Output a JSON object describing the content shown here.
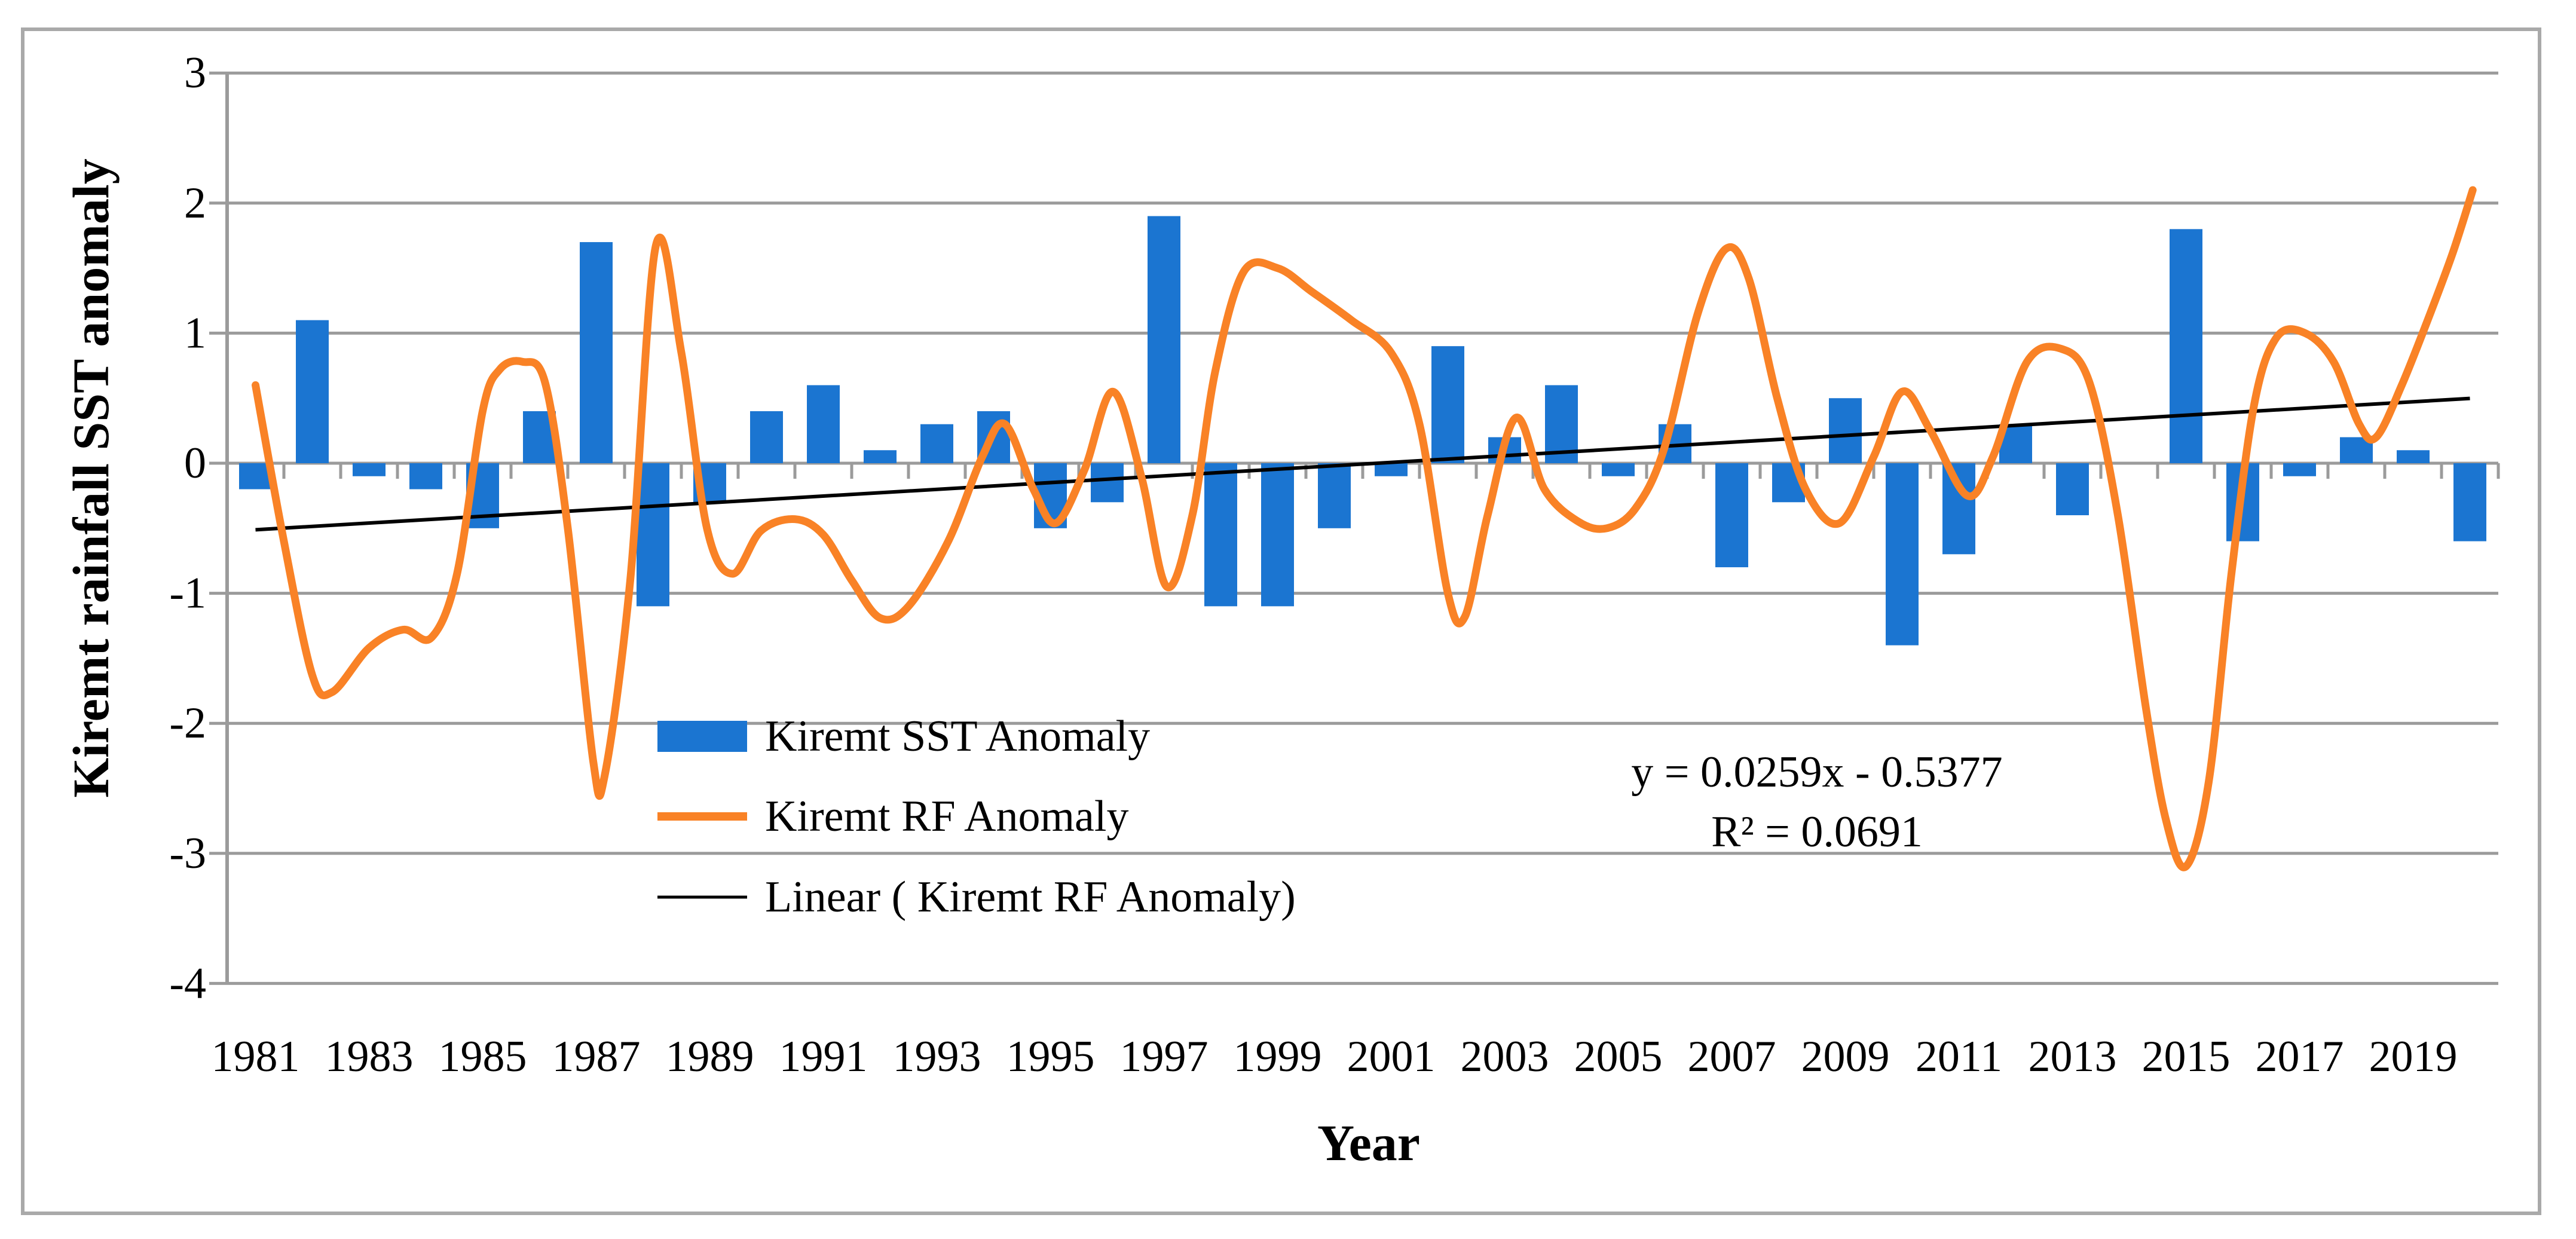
{
  "figure": {
    "background": "#FFFFFF",
    "border_color": "#A9A9A9"
  },
  "axes": {
    "grid_color": "#9B9B9B",
    "axis_color": "#9B9B9B",
    "y_tick_labels": [
      "3",
      "2",
      "1",
      "0",
      "-1",
      "-2",
      "-3",
      "-4"
    ],
    "x_tick_labels": [
      "1981",
      "1983",
      "1985",
      "1987",
      "1989",
      "1991",
      "1993",
      "1995",
      "1997",
      "1999",
      "2001",
      "2003",
      "2005",
      "2007",
      "2009",
      "2011",
      "2013",
      "2015",
      "2017",
      "2019"
    ]
  },
  "legend": {
    "items": [
      {
        "label": "Kiremt SST Anomaly",
        "swatch": "bar",
        "color": "#1B75D1"
      },
      {
        "label": " Kiremt RF Anomaly",
        "swatch": "thick-line",
        "color": "#F98226"
      },
      {
        "label": "Linear ( Kiremt RF Anomaly)",
        "swatch": "thin-line",
        "color": "#000000"
      }
    ]
  },
  "annotation": {
    "line1": "y = 0.0259x - 0.5377",
    "line2": "R² = 0.0691"
  },
  "chart_data": {
    "type": "combo",
    "title": "",
    "xlabel": "Year",
    "ylabel": "Kiremt rainfall SST anomaly",
    "ylim": [
      -4,
      3
    ],
    "y_tick_step": 1,
    "grid": true,
    "legend_position": "inside-lower-left",
    "categories": [
      1981,
      1982,
      1983,
      1984,
      1985,
      1986,
      1987,
      1988,
      1989,
      1990,
      1991,
      1992,
      1993,
      1994,
      1995,
      1996,
      1997,
      1998,
      1999,
      2000,
      2001,
      2002,
      2003,
      2004,
      2005,
      2006,
      2007,
      2008,
      2009,
      2010,
      2011,
      2012,
      2013,
      2014,
      2015,
      2016,
      2017,
      2018,
      2019,
      2020
    ],
    "series": [
      {
        "name": "Kiremt SST Anomaly",
        "type": "bar",
        "color": "#1B75D1",
        "values": [
          -0.2,
          1.1,
          -0.1,
          -0.2,
          -0.5,
          0.4,
          1.7,
          -1.1,
          -0.3,
          0.4,
          0.6,
          0.1,
          0.3,
          0.4,
          -0.5,
          -0.3,
          1.9,
          -1.1,
          -1.1,
          -0.5,
          -0.1,
          0.9,
          0.2,
          0.6,
          -0.1,
          0.3,
          -0.8,
          -0.3,
          0.5,
          -1.4,
          -0.7,
          0.3,
          -0.4,
          0.0,
          1.8,
          -0.6,
          -0.1,
          0.2,
          0.1,
          -0.6
        ]
      },
      {
        "name": "Kiremt RF Anomaly",
        "type": "line",
        "style": "smooth",
        "color": "#F98226",
        "stroke_width": 13,
        "points": [
          [
            1981.0,
            0.6
          ],
          [
            1981.5,
            -0.6
          ],
          [
            1982.0,
            -1.63
          ],
          [
            1982.35,
            -1.76
          ],
          [
            1983.0,
            -1.42
          ],
          [
            1983.6,
            -1.28
          ],
          [
            1984.1,
            -1.34
          ],
          [
            1984.55,
            -0.85
          ],
          [
            1985.0,
            0.4
          ],
          [
            1985.3,
            0.72
          ],
          [
            1985.7,
            0.78
          ],
          [
            1986.1,
            0.62
          ],
          [
            1986.5,
            -0.5
          ],
          [
            1986.95,
            -2.3
          ],
          [
            1987.15,
            -2.4
          ],
          [
            1987.6,
            -0.9
          ],
          [
            1988.05,
            1.67
          ],
          [
            1988.5,
            0.85
          ],
          [
            1988.95,
            -0.5
          ],
          [
            1989.4,
            -0.85
          ],
          [
            1989.9,
            -0.52
          ],
          [
            1990.5,
            -0.43
          ],
          [
            1991.0,
            -0.55
          ],
          [
            1991.5,
            -0.9
          ],
          [
            1992.0,
            -1.19
          ],
          [
            1992.5,
            -1.1
          ],
          [
            1993.2,
            -0.6
          ],
          [
            1993.8,
            0.05
          ],
          [
            1994.2,
            0.3
          ],
          [
            1994.7,
            -0.2
          ],
          [
            1995.1,
            -0.46
          ],
          [
            1995.6,
            -0.05
          ],
          [
            1996.1,
            0.55
          ],
          [
            1996.6,
            -0.1
          ],
          [
            1997.05,
            -0.95
          ],
          [
            1997.5,
            -0.4
          ],
          [
            1997.9,
            0.7
          ],
          [
            1998.4,
            1.47
          ],
          [
            1999.0,
            1.5
          ],
          [
            1999.6,
            1.32
          ],
          [
            2000.3,
            1.1
          ],
          [
            2001.0,
            0.85
          ],
          [
            2001.5,
            0.3
          ],
          [
            2002.0,
            -1.0
          ],
          [
            2002.3,
            -1.18
          ],
          [
            2002.7,
            -0.4
          ],
          [
            2003.2,
            0.35
          ],
          [
            2003.7,
            -0.2
          ],
          [
            2004.3,
            -0.45
          ],
          [
            2004.8,
            -0.5
          ],
          [
            2005.3,
            -0.35
          ],
          [
            2005.8,
            0.1
          ],
          [
            2006.4,
            1.15
          ],
          [
            2006.9,
            1.65
          ],
          [
            2007.3,
            1.42
          ],
          [
            2007.8,
            0.5
          ],
          [
            2008.3,
            -0.2
          ],
          [
            2008.9,
            -0.46
          ],
          [
            2009.5,
            0.05
          ],
          [
            2010.0,
            0.55
          ],
          [
            2010.5,
            0.25
          ],
          [
            2011.15,
            -0.25
          ],
          [
            2011.6,
            0.05
          ],
          [
            2012.2,
            0.78
          ],
          [
            2012.8,
            0.88
          ],
          [
            2013.3,
            0.62
          ],
          [
            2013.8,
            -0.4
          ],
          [
            2014.3,
            -1.9
          ],
          [
            2014.65,
            -2.75
          ],
          [
            2015.0,
            -3.1
          ],
          [
            2015.4,
            -2.45
          ],
          [
            2015.8,
            -0.85
          ],
          [
            2016.2,
            0.45
          ],
          [
            2016.6,
            0.97
          ],
          [
            2017.1,
            1.0
          ],
          [
            2017.6,
            0.78
          ],
          [
            2018.05,
            0.3
          ],
          [
            2018.35,
            0.2
          ],
          [
            2018.8,
            0.6
          ],
          [
            2019.3,
            1.15
          ],
          [
            2019.7,
            1.62
          ],
          [
            2020.05,
            2.1
          ]
        ]
      },
      {
        "name": "Linear ( Kiremt RF Anomaly)",
        "type": "trendline",
        "color": "#000000",
        "stroke_width": 6,
        "slope": 0.0259,
        "intercept": -0.5377,
        "r_squared": 0.0691,
        "equation": "y = 0.0259x - 0.5377"
      }
    ]
  }
}
